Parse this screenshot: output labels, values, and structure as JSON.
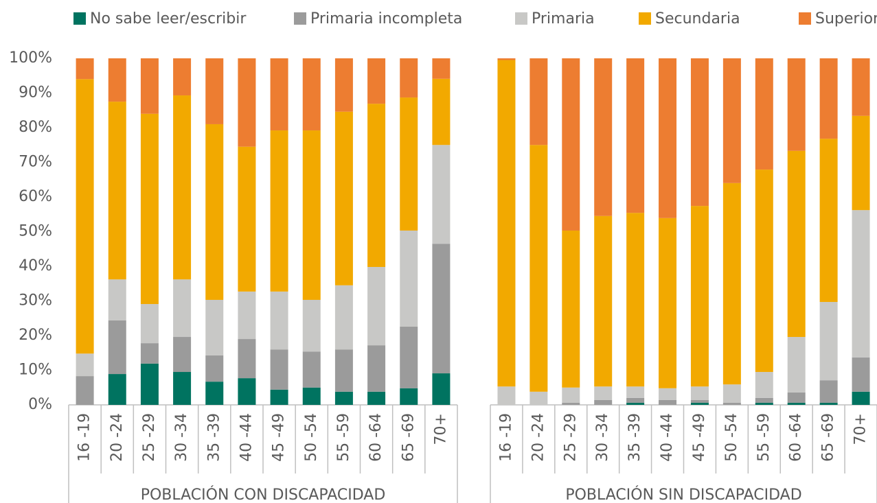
{
  "chart_data": {
    "type": "stacked_bar",
    "series": [
      {
        "name": "No sabe leer/escribir",
        "color": "#007360"
      },
      {
        "name": "Primaria incompleta",
        "color": "#9b9b9b"
      },
      {
        "name": "Primaria",
        "color": "#c8c8c6"
      },
      {
        "name": "Secundaria",
        "color": "#f2a900"
      },
      {
        "name": "Superior",
        "color": "#ed7d31"
      }
    ],
    "categories": [
      "16 -19",
      "20 -24",
      "25 -29",
      "30 -34",
      "35 -39",
      "40 -44",
      "45 -49",
      "50 -54",
      "55 -59",
      "60 -64",
      "65 -69",
      "70+"
    ],
    "groups": [
      {
        "label": "POBLACIÓN CON DISCAPACIDAD",
        "values": [
          [
            0,
            8.9,
            11.9,
            9.5,
            6.7,
            7.7,
            4.4,
            5.0,
            3.8,
            3.8,
            4.8,
            9.1
          ],
          [
            8.3,
            15.5,
            5.9,
            10.1,
            7.6,
            11.3,
            11.6,
            10.4,
            12.2,
            13.4,
            17.8,
            37.4
          ],
          [
            6.5,
            11.8,
            11.3,
            16.6,
            16.0,
            13.7,
            16.7,
            14.9,
            18.5,
            22.6,
            27.7,
            28.5
          ],
          [
            79.2,
            51.3,
            54.9,
            53.1,
            50.7,
            41.8,
            46.5,
            48.9,
            50.1,
            47.1,
            38.4,
            19.1
          ],
          [
            6.0,
            12.5,
            16.0,
            10.7,
            19.0,
            25.5,
            20.8,
            20.8,
            15.4,
            13.1,
            11.3,
            5.9
          ]
        ]
      },
      {
        "label": "POBLACIÓN SIN DISCAPACIDAD",
        "values": [
          [
            0,
            0,
            0,
            0,
            0.6,
            0,
            0.6,
            0,
            0.6,
            0.6,
            0.6,
            3.8
          ],
          [
            0,
            0,
            0.6,
            1.4,
            1.4,
            1.4,
            0.8,
            0.6,
            1.4,
            3.0,
            6.5,
            9.9
          ],
          [
            5.3,
            3.8,
            4.4,
            3.9,
            3.3,
            3.4,
            3.9,
            5.3,
            7.5,
            16.0,
            22.6,
            42.5
          ],
          [
            94.2,
            71.2,
            45.3,
            49.2,
            50.1,
            49.1,
            52.1,
            58.1,
            58.4,
            53.7,
            47.1,
            27.2
          ],
          [
            0.5,
            25.0,
            49.7,
            45.5,
            44.6,
            46.1,
            42.6,
            36.0,
            32.1,
            26.7,
            23.2,
            16.6
          ]
        ]
      }
    ],
    "ylim": [
      0,
      100
    ],
    "yticks": [
      {
        "value": 0,
        "label": "0%"
      },
      {
        "value": 10,
        "label": "10%"
      },
      {
        "value": 20,
        "label": "20%"
      },
      {
        "value": 30,
        "label": "30%"
      },
      {
        "value": 40,
        "label": "40%"
      },
      {
        "value": 50,
        "label": "50%"
      },
      {
        "value": 60,
        "label": "60%"
      },
      {
        "value": 70,
        "label": "70%"
      },
      {
        "value": 80,
        "label": "80%"
      },
      {
        "value": 90,
        "label": "90%"
      },
      {
        "value": 100,
        "label": "100%"
      }
    ],
    "legend": "top"
  }
}
